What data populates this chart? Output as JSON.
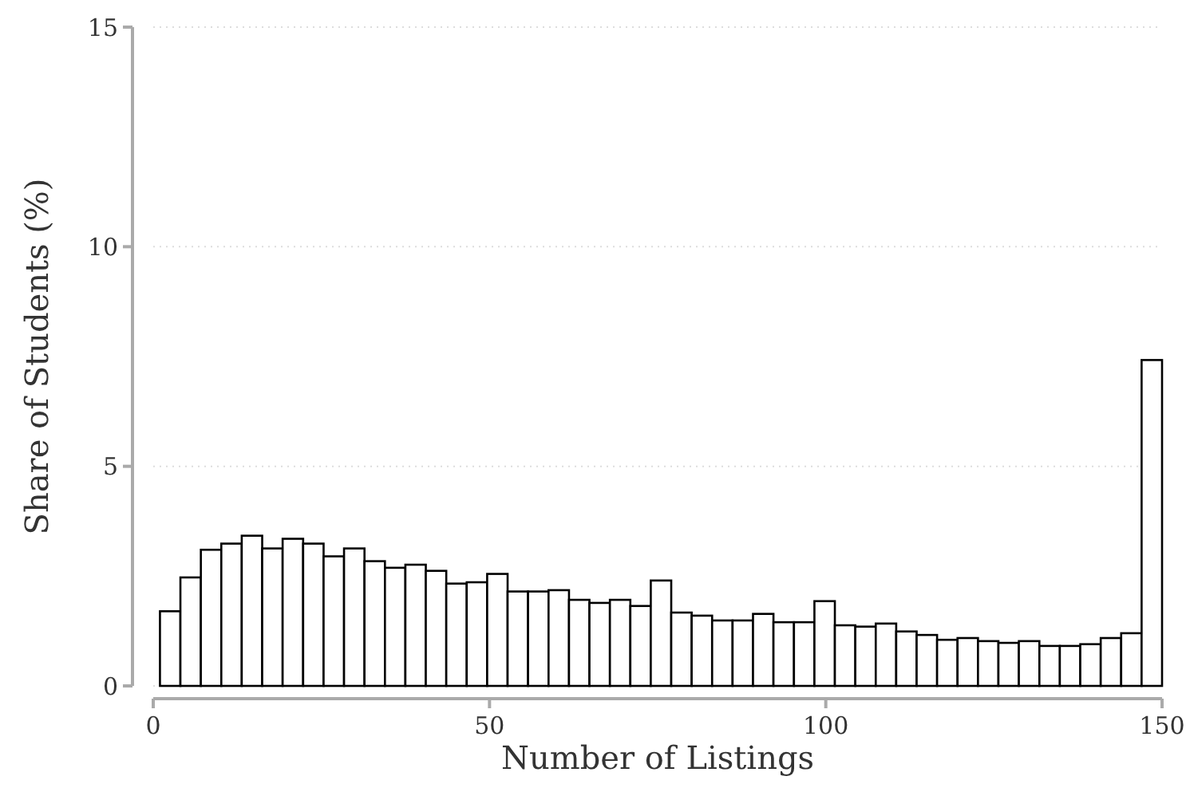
{
  "chart_data": {
    "type": "histogram",
    "xlabel": "Number of Listings",
    "ylabel": "Share of Students (%)",
    "bins": [
      1,
      4.04,
      7.08,
      10.12,
      13.16,
      16.2,
      19.24,
      22.29,
      25.33,
      28.37,
      31.41,
      34.45,
      37.49,
      40.53,
      43.57,
      46.61,
      49.65,
      52.69,
      55.73,
      58.78,
      61.82,
      64.86,
      67.9,
      70.94,
      73.98,
      77.02,
      80.06,
      83.1,
      86.14,
      89.18,
      92.22,
      95.27,
      98.31,
      101.35,
      104.39,
      107.43,
      110.47,
      113.51,
      116.55,
      119.59,
      122.63,
      125.67,
      128.71,
      131.76,
      134.8,
      137.84,
      140.88,
      143.92,
      146.96,
      150
    ],
    "values": [
      1.7,
      2.47,
      3.1,
      3.24,
      3.42,
      3.13,
      3.35,
      3.24,
      2.95,
      3.13,
      2.84,
      2.69,
      2.76,
      2.62,
      2.33,
      2.36,
      2.55,
      2.15,
      2.15,
      2.18,
      1.96,
      1.89,
      1.96,
      1.82,
      2.4,
      1.67,
      1.6,
      1.49,
      1.49,
      1.64,
      1.45,
      1.45,
      1.93,
      1.38,
      1.35,
      1.42,
      1.24,
      1.16,
      1.05,
      1.09,
      1.02,
      0.98,
      1.02,
      0.91,
      0.91,
      0.95,
      1.09,
      1.2,
      7.42
    ],
    "color": "#ffffff",
    "xlim": [
      0,
      150
    ],
    "xticks": [
      0,
      50,
      100,
      150
    ],
    "ylim": [
      0,
      15
    ],
    "yticks": [
      0,
      5,
      10,
      15
    ],
    "grid": "y"
  }
}
